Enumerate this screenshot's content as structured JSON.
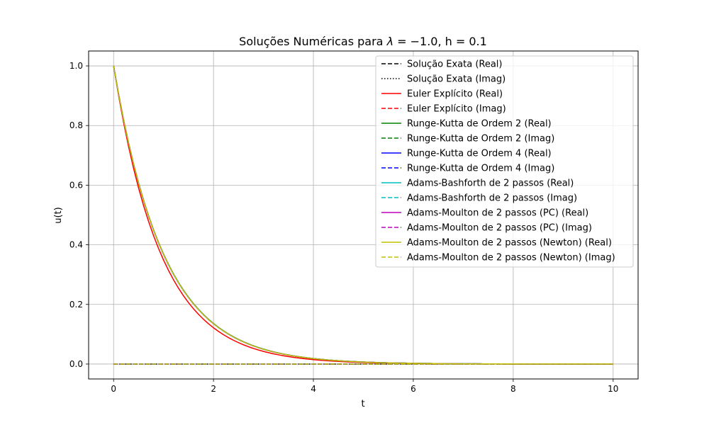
{
  "chart_data": {
    "type": "line",
    "title": "Soluções Numéricas para λ = −1.0, h = 0.1",
    "title_parts": {
      "prefix": "Soluções Numéricas para ",
      "lambda": "λ",
      "eq": " = −1.0",
      "rest": ", h = 0.1"
    },
    "xlabel": "t",
    "ylabel": "u(t)",
    "xlim": [
      -0.5,
      10.5
    ],
    "ylim": [
      -0.05,
      1.05
    ],
    "xticks": [
      0,
      2,
      4,
      6,
      8,
      10
    ],
    "xtick_labels": [
      "0",
      "2",
      "4",
      "6",
      "8",
      "10"
    ],
    "yticks": [
      0.0,
      0.2,
      0.4,
      0.6,
      0.8,
      1.0
    ],
    "ytick_labels": [
      "0.0",
      "0.2",
      "0.4",
      "0.6",
      "0.8",
      "1.0"
    ],
    "grid": true,
    "legend_position": "top-right",
    "model": {
      "lambda": -1.0,
      "h": 0.1,
      "t_start": 0,
      "t_end": 10,
      "u0": 1.0
    },
    "series": [
      {
        "name": "Solução Exata (Real)",
        "color": "#000000",
        "style": "dashed",
        "method": "exact",
        "part": "real"
      },
      {
        "name": "Solução Exata (Imag)",
        "color": "#000000",
        "style": "dotted",
        "method": "exact",
        "part": "imag"
      },
      {
        "name": "Euler Explícito (Real)",
        "color": "#ff0000",
        "style": "solid",
        "method": "euler",
        "part": "real"
      },
      {
        "name": "Euler Explícito (Imag)",
        "color": "#ff0000",
        "style": "dashed",
        "method": "euler",
        "part": "imag"
      },
      {
        "name": "Runge-Kutta de Ordem 2 (Real)",
        "color": "#008000",
        "style": "solid",
        "method": "rk2",
        "part": "real"
      },
      {
        "name": "Runge-Kutta de Ordem 2 (Imag)",
        "color": "#008000",
        "style": "dashed",
        "method": "rk2",
        "part": "imag"
      },
      {
        "name": "Runge-Kutta de Ordem 4 (Real)",
        "color": "#0000ff",
        "style": "solid",
        "method": "rk4",
        "part": "real"
      },
      {
        "name": "Runge-Kutta de Ordem 4 (Imag)",
        "color": "#0000ff",
        "style": "dashed",
        "method": "rk4",
        "part": "imag"
      },
      {
        "name": "Adams-Bashforth de 2 passos (Real)",
        "color": "#00bfbf",
        "style": "solid",
        "method": "ab2",
        "part": "real"
      },
      {
        "name": "Adams-Bashforth de 2 passos (Imag)",
        "color": "#00bfbf",
        "style": "dashed",
        "method": "ab2",
        "part": "imag"
      },
      {
        "name": "Adams-Moulton de 2 passos (PC) (Real)",
        "color": "#bf00bf",
        "style": "solid",
        "method": "am2pc",
        "part": "real"
      },
      {
        "name": "Adams-Moulton de 2 passos (PC) (Imag)",
        "color": "#bf00bf",
        "style": "dashed",
        "method": "am2pc",
        "part": "imag"
      },
      {
        "name": "Adams-Moulton de 2 passos (Newton) (Real)",
        "color": "#bfbf00",
        "style": "solid",
        "method": "am2n",
        "part": "real"
      },
      {
        "name": "Adams-Moulton de 2 passos (Newton) (Imag)",
        "color": "#bfbf00",
        "style": "dashed",
        "method": "am2n",
        "part": "imag"
      }
    ]
  }
}
